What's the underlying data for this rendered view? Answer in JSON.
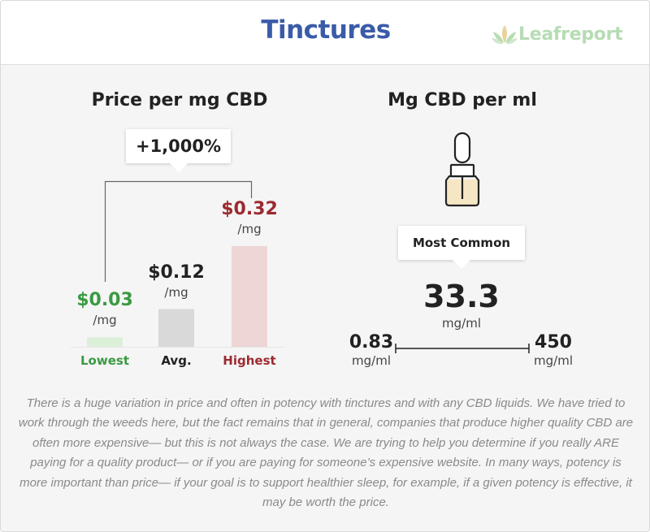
{
  "header": {
    "title": "Tinctures",
    "logo_text": "Leafreport"
  },
  "colors": {
    "title": "#3a5ba8",
    "lowest": "#3a9a42",
    "lowest_bar": "#dcefd9",
    "avg": "#222222",
    "avg_bar": "#d9d9d9",
    "highest": "#9b2a30",
    "highest_bar": "#eed6d7",
    "logo_green": "#b7dcb4",
    "logo_leaf_gold": "#e8d39a"
  },
  "price_panel": {
    "title": "Price per mg CBD",
    "callout": "+1,000%"
  },
  "chart_data": {
    "type": "bar",
    "title": "Price per mg CBD",
    "categories": [
      "Lowest",
      "Avg.",
      "Highest"
    ],
    "values": [
      0.03,
      0.12,
      0.32
    ],
    "value_labels": [
      "$0.03",
      "$0.12",
      "$0.32"
    ],
    "unit_label": "/mg",
    "annotation": "+1,000%",
    "ylim": [
      0,
      0.32
    ]
  },
  "potency_panel": {
    "title": "Mg CBD per ml",
    "icon": "dropper-bottle-icon",
    "callout": "Most Common",
    "most_common_value": "33.3",
    "most_common_unit": "mg/ml",
    "range_min": "0.83",
    "range_min_unit": "mg/ml",
    "range_max": "450",
    "range_max_unit": "mg/ml"
  },
  "description": "There is a huge variation in price and often in potency with tinctures and with any CBD liquids.  We have tried to work through the weeds here, but the fact remains that in general, companies that produce higher quality CBD are often more expensive— but this is not always the case. We are trying to help you determine if you really ARE paying for a quality product— or if you are paying for someone’s expensive website. In many ways, potency is more important than price— if your goal is to support healthier sleep, for example, if a given potency is effective, it may be worth the price."
}
